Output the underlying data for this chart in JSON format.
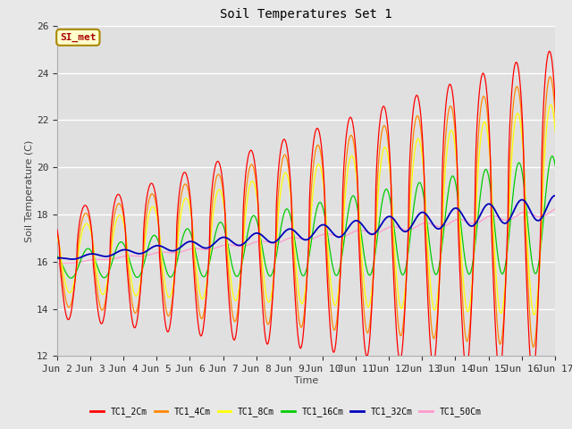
{
  "title": "Soil Temperatures Set 1",
  "xlabel": "Time",
  "ylabel": "Soil Temperature (C)",
  "ylim": [
    12,
    26
  ],
  "xlim": [
    0,
    360
  ],
  "fig_facecolor": "#e8e8e8",
  "plot_facecolor": "#e0e0e0",
  "series_colors": {
    "TC1_2Cm": "#ff0000",
    "TC1_4Cm": "#ff8800",
    "TC1_8Cm": "#ffff00",
    "TC1_16Cm": "#00cc00",
    "TC1_32Cm": "#0000bb",
    "TC1_50Cm": "#ff99cc"
  },
  "annotation_text": "SI_met",
  "annotation_color": "#aa0000",
  "annotation_bg": "#ffffcc",
  "annotation_border": "#aa8800",
  "tick_labels": [
    "Jun 2",
    "Jun 3",
    "Jun 4",
    "Jun 5",
    "Jun 6",
    "Jun 7",
    "Jun 8",
    "Jun 9",
    "Jun 10",
    "Jun 11",
    "Jun 12",
    "Jun 13",
    "Jun 14",
    "Jun 15",
    "Jun 16",
    "Jun 17"
  ],
  "tick_positions": [
    0,
    24,
    48,
    72,
    96,
    120,
    144,
    168,
    192,
    216,
    240,
    264,
    288,
    312,
    336,
    360
  ]
}
